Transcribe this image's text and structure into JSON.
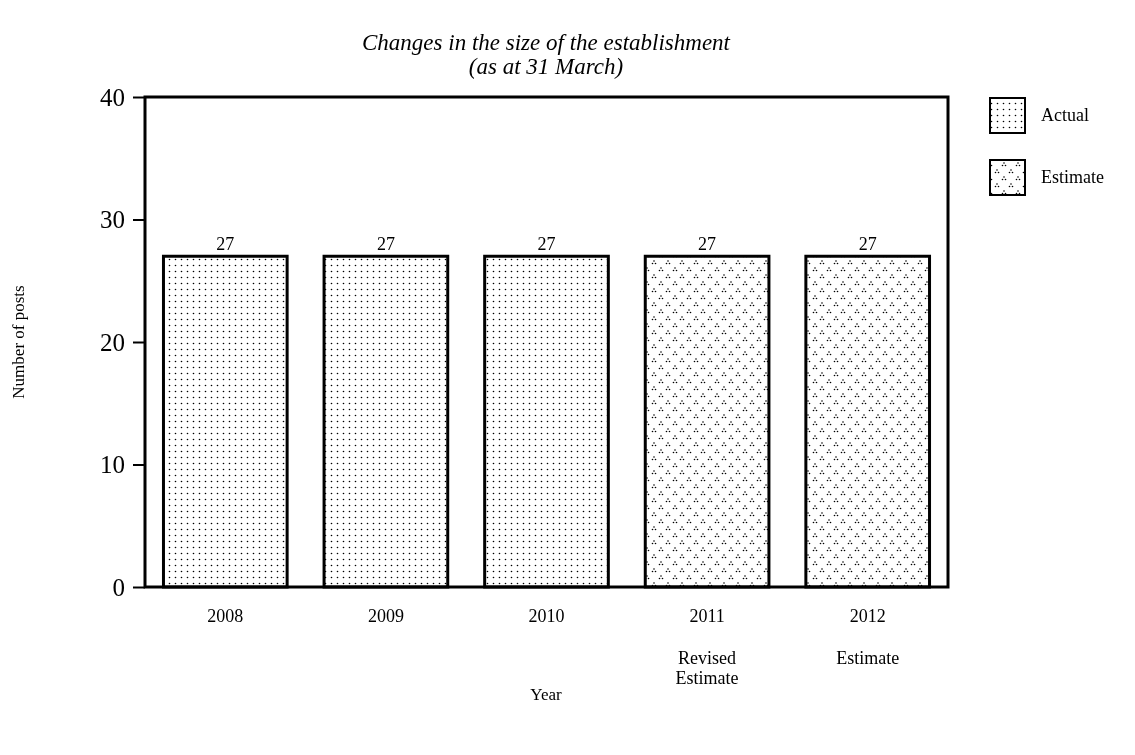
{
  "chart_data": {
    "type": "bar",
    "title": "Changes in the size of the establishment",
    "subtitle": "(as at 31 March)",
    "xlabel": "Year",
    "ylabel": "Number of posts",
    "categories": [
      "2008",
      "2009",
      "2010",
      "2011\nRevised\nEstimate",
      "2012\nEstimate"
    ],
    "series": [
      {
        "name": "Actual",
        "color": "#000000",
        "values": [
          27,
          27,
          27,
          null,
          null
        ]
      },
      {
        "name": "Estimate",
        "color": "#000000",
        "values": [
          null,
          null,
          null,
          27,
          27
        ]
      }
    ],
    "stacked": true,
    "data_labels": true,
    "ylim": [
      0,
      40
    ],
    "yticks": [
      0,
      10,
      20,
      30,
      40
    ],
    "grid": false,
    "legend": "top right"
  }
}
